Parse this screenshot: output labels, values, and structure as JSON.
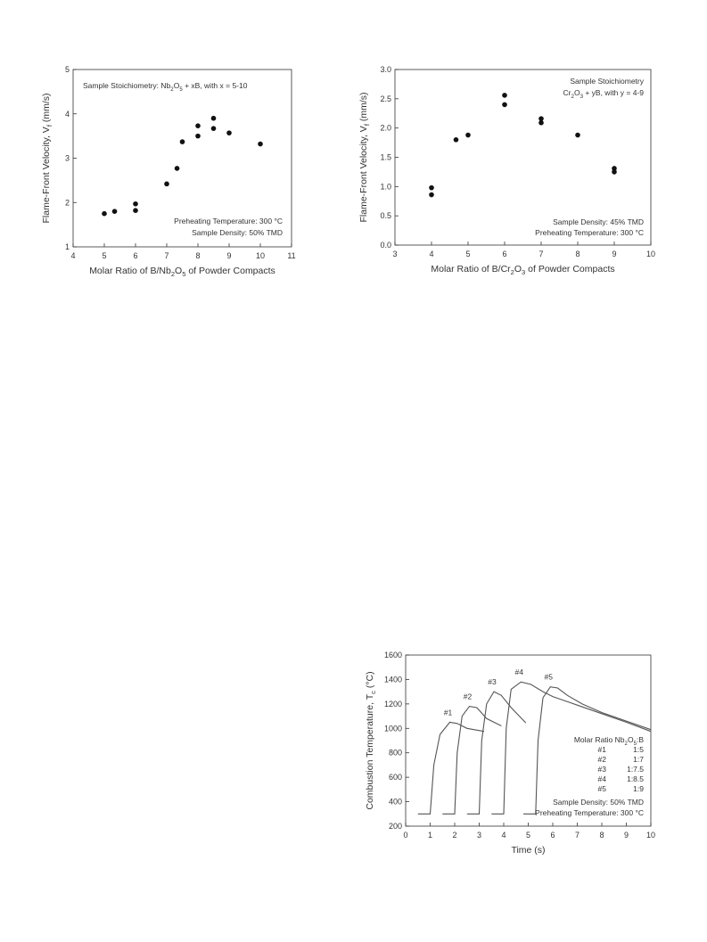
{
  "charts": [
    {
      "id": "nb",
      "chart_data": {
        "type": "scatter",
        "title": "",
        "xlabel": "Molar Ratio of B/Nb2O5 of Powder Compacts",
        "ylabel": "Flame-Front Velocity, Vf (mm/s)",
        "xlim": [
          4,
          11
        ],
        "ylim": [
          1,
          5
        ],
        "xticks": [
          "4",
          "5",
          "6",
          "7",
          "8",
          "9",
          "10",
          "11"
        ],
        "yticks": [
          "1",
          "2",
          "3",
          "4",
          "5"
        ],
        "annotations": [
          "Sample Stoichiometry: Nb2O5 + xB, with x = 5-10",
          "Preheating Temperature: 300 °C",
          "Sample Density: 50% TMD"
        ],
        "series": [
          {
            "points": [
              [
                5,
                1.75
              ],
              [
                5.33,
                1.8
              ],
              [
                6,
                1.82
              ],
              [
                6,
                1.97
              ],
              [
                7,
                2.42
              ],
              [
                7.33,
                2.77
              ],
              [
                7.5,
                3.37
              ],
              [
                8,
                3.5
              ],
              [
                8,
                3.73
              ],
              [
                8.5,
                3.67
              ],
              [
                8.5,
                3.9
              ],
              [
                9,
                3.57
              ],
              [
                10,
                3.32
              ]
            ]
          }
        ]
      }
    },
    {
      "id": "cr",
      "chart_data": {
        "type": "scatter",
        "title": "",
        "xlabel": "Molar Ratio of B/Cr2O3 of Powder Compacts",
        "ylabel": "Flame-Front Velocity, Vf (mm/s)",
        "xlim": [
          3,
          10
        ],
        "ylim": [
          0.0,
          3.0
        ],
        "xticks": [
          "3",
          "4",
          "5",
          "6",
          "7",
          "8",
          "9",
          "10"
        ],
        "yticks": [
          "0.0",
          "0.5",
          "1.0",
          "1.5",
          "2.0",
          "2.5",
          "3.0"
        ],
        "annotations": [
          "Sample Stoichiometry",
          "Cr2O3 + yB, with y = 4-9",
          "Sample Density: 45% TMD",
          "Preheating Temperature: 300 °C"
        ],
        "series": [
          {
            "points": [
              [
                4,
                0.98
              ],
              [
                4,
                0.86
              ],
              [
                4.67,
                1.8
              ],
              [
                5,
                1.88
              ],
              [
                6,
                2.56
              ],
              [
                6,
                2.4
              ],
              [
                7,
                2.16
              ],
              [
                7,
                2.09
              ],
              [
                8,
                1.88
              ],
              [
                9,
                1.31
              ],
              [
                9,
                1.25
              ]
            ]
          }
        ]
      }
    },
    {
      "id": "temp",
      "chart_data": {
        "type": "line",
        "title": "",
        "xlabel": "Time (s)",
        "ylabel": "Combustion Temperature, Tc (°C)",
        "xlim": [
          0,
          10
        ],
        "ylim": [
          200,
          1600
        ],
        "xticks": [
          "0",
          "1",
          "2",
          "3",
          "4",
          "5",
          "6",
          "7",
          "8",
          "9",
          "10"
        ],
        "yticks": [
          "200",
          "400",
          "600",
          "800",
          "1000",
          "1200",
          "1400",
          "1600"
        ],
        "legend_title": "Molar Ratio Nb2O5:B",
        "legend": [
          {
            "name": "#1",
            "ratio": "1:5"
          },
          {
            "name": "#2",
            "ratio": "1:7"
          },
          {
            "name": "#3",
            "ratio": "1:7.5"
          },
          {
            "name": "#4",
            "ratio": "1:8.5"
          },
          {
            "name": "#5",
            "ratio": "1:9"
          }
        ],
        "annotations": [
          "Sample Density: 50% TMD",
          "Preheating Temperature: 300 °C"
        ],
        "series": [
          {
            "name": "#1",
            "points": [
              [
                0.5,
                300
              ],
              [
                1.0,
                300
              ],
              [
                1.15,
                700
              ],
              [
                1.4,
                950
              ],
              [
                1.8,
                1050
              ],
              [
                2.1,
                1040
              ],
              [
                2.5,
                1000
              ],
              [
                3.2,
                975
              ]
            ]
          },
          {
            "name": "#2",
            "points": [
              [
                1.5,
                300
              ],
              [
                2.0,
                300
              ],
              [
                2.1,
                800
              ],
              [
                2.3,
                1100
              ],
              [
                2.6,
                1180
              ],
              [
                2.9,
                1170
              ],
              [
                3.3,
                1080
              ],
              [
                3.9,
                1020
              ]
            ]
          },
          {
            "name": "#3",
            "points": [
              [
                2.5,
                300
              ],
              [
                3.0,
                300
              ],
              [
                3.1,
                900
              ],
              [
                3.3,
                1200
              ],
              [
                3.6,
                1300
              ],
              [
                3.9,
                1270
              ],
              [
                4.3,
                1170
              ],
              [
                4.9,
                1045
              ]
            ]
          },
          {
            "name": "#4",
            "points": [
              [
                3.5,
                300
              ],
              [
                4.0,
                300
              ],
              [
                4.1,
                1000
              ],
              [
                4.3,
                1320
              ],
              [
                4.7,
                1380
              ],
              [
                5.1,
                1360
              ],
              [
                5.6,
                1300
              ],
              [
                6.0,
                1260
              ],
              [
                7.0,
                1190
              ],
              [
                8.0,
                1120
              ],
              [
                9.0,
                1050
              ],
              [
                10.0,
                975
              ]
            ]
          },
          {
            "name": "#5",
            "points": [
              [
                4.8,
                300
              ],
              [
                5.3,
                300
              ],
              [
                5.4,
                900
              ],
              [
                5.6,
                1250
              ],
              [
                5.9,
                1340
              ],
              [
                6.2,
                1330
              ],
              [
                6.6,
                1270
              ],
              [
                7.2,
                1200
              ],
              [
                8.0,
                1130
              ],
              [
                9.0,
                1060
              ],
              [
                10.0,
                990
              ]
            ]
          }
        ]
      }
    }
  ]
}
